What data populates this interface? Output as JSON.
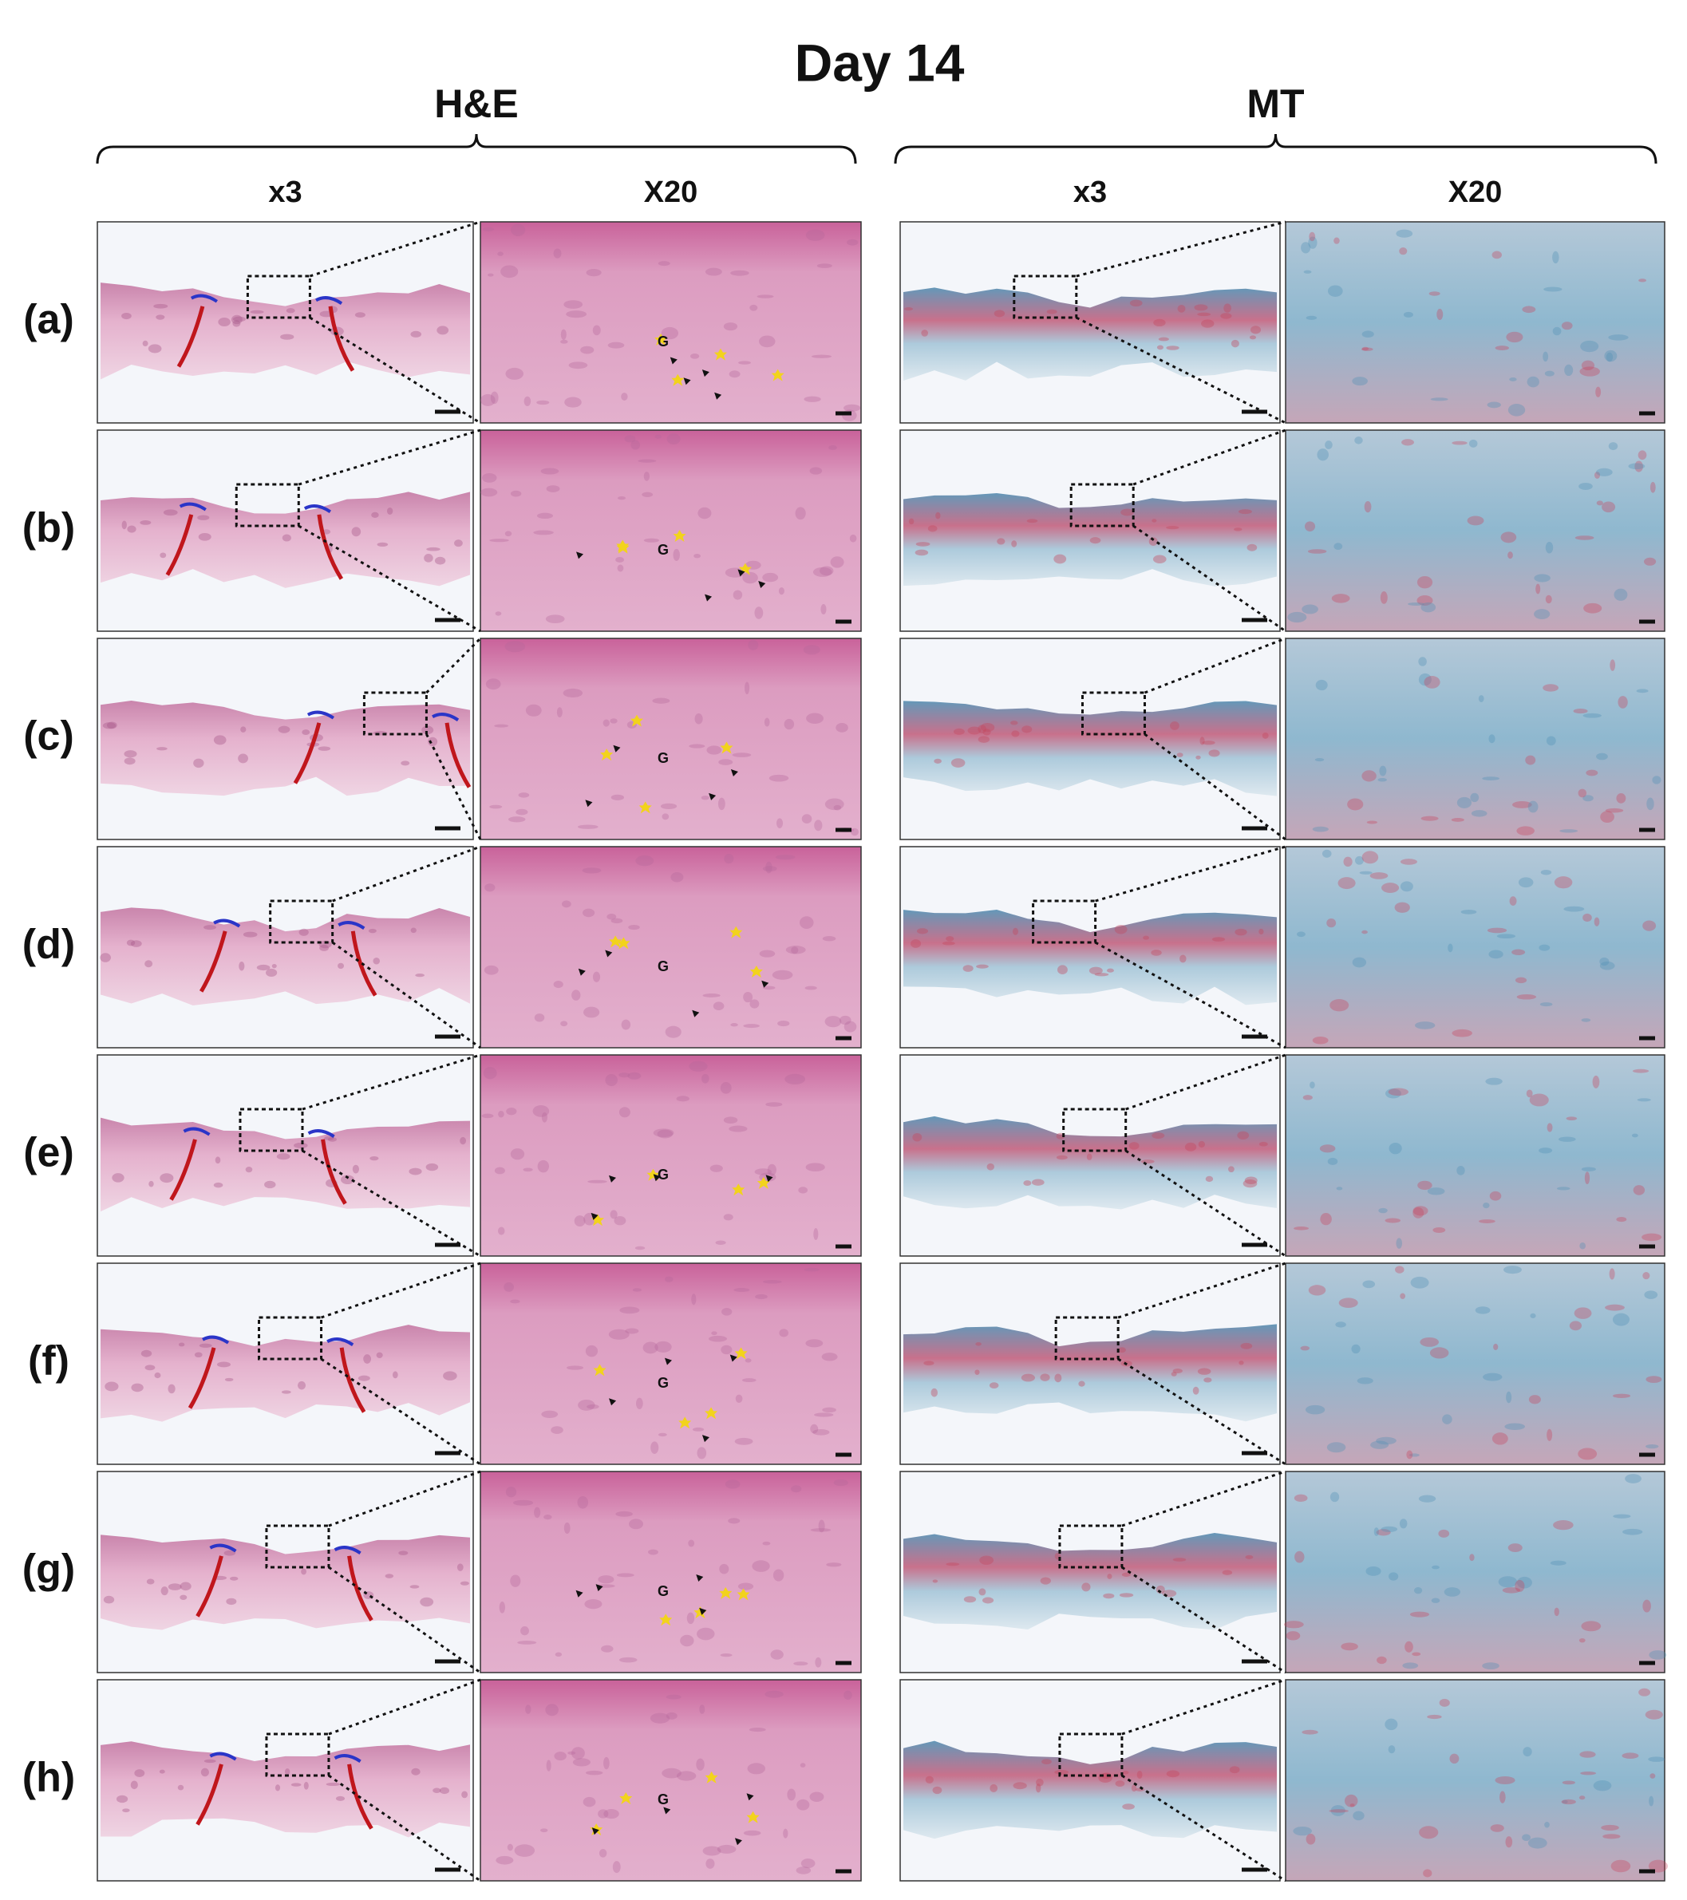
{
  "title": "Day 14",
  "groups": [
    {
      "label": "H&E",
      "columns": [
        "x3",
        "X20"
      ]
    },
    {
      "label": "MT",
      "columns": [
        "x3",
        "X20"
      ]
    }
  ],
  "rows": [
    {
      "label": "(a)",
      "annotation": "G"
    },
    {
      "label": "(b)",
      "annotation": "G"
    },
    {
      "label": "(c)",
      "annotation": "G"
    },
    {
      "label": "(d)",
      "annotation": "G"
    },
    {
      "label": "(e)",
      "annotation": "G"
    },
    {
      "label": "(f)",
      "annotation": "G"
    },
    {
      "label": "(g)",
      "annotation": "G"
    },
    {
      "label": "(h)",
      "annotation": "G"
    }
  ]
}
